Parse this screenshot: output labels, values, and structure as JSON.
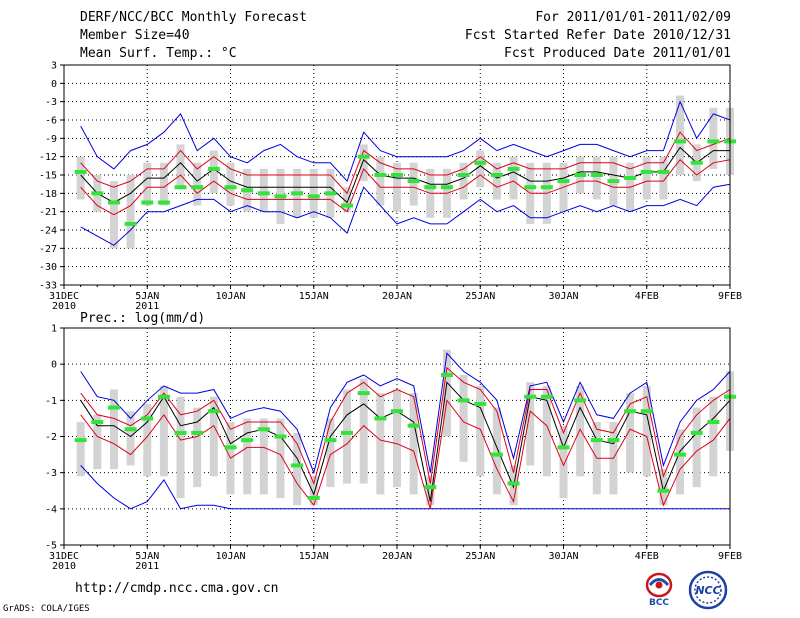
{
  "header": {
    "title": "DERF/NCC/BCC Monthly Forecast",
    "member_size": "Member Size=40",
    "variable": "Mean Surf. Temp.: °C",
    "period": "For 2011/01/01-2011/02/09",
    "fcst_started": "Fcst Started Refer Date 2010/12/31",
    "fcst_produced": "Fcst Produced Date 2011/01/01"
  },
  "footer": {
    "url": "http://cmdp.ncc.cma.gov.cn",
    "credit": "GrADS: COLA/IGES",
    "logo_bcc_label": "BCC",
    "logo_ncc_label": "NCC"
  },
  "colors": {
    "ensemble_bar": "#d3d3d3",
    "mean_line": "#000000",
    "spread_line": "#e0001a",
    "envelope_line": "#0000e0",
    "deterministic": "#33e33a",
    "grid": "#000000"
  },
  "chart_data": [
    {
      "type": "line",
      "title": "Mean Surf. Temp.: °C",
      "ylabel": "°C",
      "ylim": [
        -33,
        3
      ],
      "yticks": [
        3,
        0,
        -3,
        -6,
        -9,
        -12,
        -15,
        -18,
        -21,
        -24,
        -27,
        -30,
        -33
      ],
      "xlim": [
        0,
        40
      ],
      "xticks": [
        0,
        5,
        10,
        15,
        20,
        25,
        30,
        35,
        40
      ],
      "xtick_labels": [
        "31DEC",
        "5JAN",
        "10JAN",
        "15JAN",
        "20JAN",
        "25JAN",
        "30JAN",
        "4FEB",
        "9FEB"
      ],
      "xtick_sublabels": [
        "2010",
        "2011",
        "",
        "",
        "",
        "",
        "",
        "",
        ""
      ],
      "x": [
        1,
        2,
        3,
        4,
        5,
        6,
        7,
        8,
        9,
        10,
        11,
        12,
        13,
        14,
        15,
        16,
        17,
        18,
        19,
        20,
        21,
        22,
        23,
        24,
        25,
        26,
        27,
        28,
        29,
        30,
        31,
        32,
        33,
        34,
        35,
        36,
        37,
        38,
        39,
        40
      ],
      "series": [
        {
          "name": "ensemble max",
          "role": "envelope",
          "values": [
            -7,
            -12,
            -14,
            -11,
            -10,
            -8,
            -5,
            -11,
            -9,
            -12,
            -13,
            -11,
            -10,
            -12,
            -13,
            -13,
            -16,
            -8,
            -11,
            -12,
            -12,
            -12,
            -12,
            -11,
            -9,
            -11,
            -10,
            -11,
            -12,
            -11,
            -10,
            -10,
            -11,
            -12,
            -11,
            -11,
            -3,
            -9,
            -5,
            -6
          ]
        },
        {
          "name": "mean + spread",
          "role": "spread",
          "values": [
            -13,
            -16,
            -17,
            -16,
            -14,
            -14,
            -11,
            -14,
            -12,
            -14,
            -15,
            -15,
            -15,
            -15,
            -15,
            -15,
            -18,
            -11,
            -13,
            -14,
            -14,
            -15,
            -15,
            -14,
            -12,
            -14,
            -13,
            -14,
            -14,
            -14,
            -13,
            -13,
            -13,
            -14,
            -13,
            -13,
            -8,
            -11,
            -10,
            -9
          ]
        },
        {
          "name": "ensemble mean",
          "role": "mean",
          "values": [
            -15,
            -18,
            -19.5,
            -18,
            -15.5,
            -15.5,
            -13,
            -16,
            -14,
            -16,
            -17,
            -17,
            -17,
            -17,
            -17,
            -17,
            -19.5,
            -12.5,
            -15,
            -15.5,
            -15.5,
            -16.5,
            -16.5,
            -15.5,
            -13.5,
            -15.5,
            -14.5,
            -16,
            -16,
            -15.5,
            -14.5,
            -14.5,
            -15,
            -15.5,
            -14.5,
            -14.5,
            -10.5,
            -13,
            -11,
            -11
          ]
        },
        {
          "name": "mean - spread",
          "role": "spread",
          "values": [
            -17,
            -20,
            -21.5,
            -20,
            -17,
            -17,
            -15,
            -18,
            -16,
            -18,
            -19,
            -19,
            -19,
            -19,
            -19,
            -19,
            -21,
            -14,
            -17,
            -17,
            -17,
            -18,
            -18,
            -17,
            -15,
            -17,
            -16,
            -18,
            -18,
            -17,
            -16,
            -16,
            -17,
            -17,
            -16,
            -16,
            -12.5,
            -15,
            -13,
            -12.5
          ]
        },
        {
          "name": "ensemble min",
          "role": "envelope",
          "values": [
            -23.5,
            -25,
            -26.5,
            -24,
            -21,
            -21,
            -20,
            -19,
            -19,
            -21,
            -20,
            -21,
            -21,
            -22,
            -21,
            -22,
            -24.5,
            -17,
            -20,
            -23,
            -22,
            -23,
            -23,
            -21,
            -19,
            -21,
            -20,
            -22,
            -22,
            -21,
            -20,
            -21,
            -20,
            -21,
            -20,
            -20,
            -19,
            -20,
            -17,
            -16.5
          ]
        },
        {
          "name": "member range top",
          "role": "bar_top",
          "values": [
            -12,
            -15,
            -16,
            -15,
            -13,
            -13,
            -10,
            -13,
            -11,
            -13,
            -14,
            -14,
            -14,
            -14,
            -14,
            -14,
            -17,
            -10,
            -12,
            -13,
            -13,
            -14,
            -14,
            -13,
            -11,
            -13,
            -12,
            -13,
            -13,
            -13,
            -12,
            -12,
            -12,
            -13,
            -12,
            -12,
            -2,
            -10,
            -4,
            -4
          ]
        },
        {
          "name": "member range bottom",
          "role": "bar_bottom",
          "values": [
            -19,
            -21,
            -27,
            -27,
            -20,
            -20,
            -17,
            -20,
            -18,
            -20,
            -21,
            -21,
            -23,
            -22,
            -22,
            -22,
            -21,
            -16,
            -20,
            -21,
            -20,
            -22,
            -22,
            -19,
            -17,
            -19,
            -19,
            -23,
            -23,
            -21,
            -18,
            -19,
            -20,
            -21,
            -19,
            -19,
            -15,
            -16,
            -14,
            -15
          ]
        },
        {
          "name": "deterministic",
          "role": "marker",
          "values": [
            -14.5,
            -18,
            -19.5,
            -23,
            -19.5,
            -19.5,
            -17,
            -17,
            -14,
            -17,
            -17.5,
            -18,
            -18.5,
            -18,
            -18.5,
            -18,
            -20,
            -12,
            -15,
            -15,
            -16,
            -17,
            -17,
            -15,
            -13,
            -15,
            -14,
            -17,
            -17,
            -16,
            -15,
            -15,
            -16,
            -15.5,
            -14.5,
            -14.5,
            -9.5,
            -13,
            -9.5,
            -9.5
          ]
        }
      ]
    },
    {
      "type": "line",
      "title": "Prec.: log(mm/d)",
      "ylabel": "log(mm/d)",
      "ylim": [
        -5,
        1
      ],
      "yticks": [
        1,
        0,
        -1,
        -2,
        -3,
        -4,
        -5
      ],
      "xlim": [
        0,
        40
      ],
      "xticks": [
        0,
        5,
        10,
        15,
        20,
        25,
        30,
        35,
        40
      ],
      "xtick_labels": [
        "31DEC",
        "5JAN",
        "10JAN",
        "15JAN",
        "20JAN",
        "25JAN",
        "30JAN",
        "4FEB",
        "9FEB"
      ],
      "xtick_sublabels": [
        "2010",
        "2011",
        "",
        "",
        "",
        "",
        "",
        "",
        ""
      ],
      "x": [
        1,
        2,
        3,
        4,
        5,
        6,
        7,
        8,
        9,
        10,
        11,
        12,
        13,
        14,
        15,
        16,
        17,
        18,
        19,
        20,
        21,
        22,
        23,
        24,
        25,
        26,
        27,
        28,
        29,
        30,
        31,
        32,
        33,
        34,
        35,
        36,
        37,
        38,
        39,
        40
      ],
      "series": [
        {
          "name": "ensemble max",
          "role": "envelope",
          "values": [
            -0.2,
            -0.9,
            -1.0,
            -1.5,
            -1.0,
            -0.6,
            -0.8,
            -0.8,
            -0.7,
            -1.5,
            -1.3,
            -1.2,
            -1.3,
            -1.8,
            -3.0,
            -1.2,
            -0.5,
            -0.3,
            -0.6,
            -0.4,
            -0.6,
            -3.0,
            0.3,
            -0.2,
            -0.5,
            -1.0,
            -2.6,
            -0.6,
            -0.5,
            -1.6,
            -0.5,
            -1.4,
            -1.5,
            -0.8,
            -0.5,
            -2.8,
            -1.6,
            -1.0,
            -0.7,
            -0.2
          ]
        },
        {
          "name": "mean + spread",
          "role": "spread",
          "values": [
            -0.8,
            -1.4,
            -1.5,
            -1.7,
            -1.4,
            -0.8,
            -1.4,
            -1.3,
            -1.0,
            -1.8,
            -1.6,
            -1.6,
            -1.6,
            -2.2,
            -3.3,
            -1.6,
            -0.8,
            -0.5,
            -0.9,
            -0.7,
            -0.9,
            -3.3,
            -0.1,
            -0.5,
            -0.7,
            -1.3,
            -3.0,
            -0.7,
            -0.7,
            -1.9,
            -0.8,
            -1.8,
            -1.9,
            -1.1,
            -0.9,
            -3.1,
            -2.0,
            -1.4,
            -1.0,
            -0.7
          ]
        },
        {
          "name": "ensemble mean",
          "role": "mean",
          "values": [
            -1.0,
            -1.7,
            -1.7,
            -2.0,
            -1.6,
            -0.9,
            -1.7,
            -1.6,
            -1.2,
            -2.2,
            -1.9,
            -1.8,
            -2.0,
            -2.6,
            -3.6,
            -2.0,
            -1.4,
            -1.1,
            -1.5,
            -1.3,
            -1.6,
            -3.8,
            -0.5,
            -1.0,
            -1.2,
            -2.3,
            -3.4,
            -0.9,
            -1.0,
            -2.3,
            -1.2,
            -2.1,
            -2.2,
            -1.3,
            -1.4,
            -3.5,
            -2.4,
            -1.9,
            -1.5,
            -1.0
          ]
        },
        {
          "name": "mean - spread",
          "role": "spread",
          "values": [
            -1.4,
            -2.0,
            -2.2,
            -2.5,
            -2.0,
            -1.4,
            -2.1,
            -2.0,
            -1.7,
            -2.6,
            -2.3,
            -2.3,
            -2.5,
            -3.3,
            -3.9,
            -2.5,
            -2.2,
            -1.7,
            -2.1,
            -2.2,
            -2.4,
            -4.0,
            -1.0,
            -1.6,
            -1.8,
            -2.9,
            -3.8,
            -1.3,
            -1.7,
            -2.8,
            -1.8,
            -2.6,
            -2.6,
            -1.8,
            -2.0,
            -3.9,
            -2.9,
            -2.4,
            -2.1,
            -1.5
          ]
        },
        {
          "name": "ensemble min",
          "role": "envelope",
          "values": [
            -2.8,
            -3.3,
            -3.7,
            -4.0,
            -3.8,
            -3.2,
            -4.0,
            -3.9,
            -3.9,
            -4.0,
            -4.0,
            -4.0,
            -4.0,
            -4.0,
            -4.0,
            -4.0,
            -4.0,
            -4.0,
            -4.0,
            -4.0,
            -4.0,
            -4.0,
            -4.0,
            -4.0,
            -4.0,
            -4.0,
            -4.0,
            -4.0,
            -4.0,
            -4.0,
            -4.0,
            -4.0,
            -4.0,
            -4.0,
            -4.0,
            -4.0,
            -4.0,
            -4.0,
            -4.0,
            -4.0
          ]
        },
        {
          "name": "member range top",
          "role": "bar_top",
          "values": [
            -1.6,
            -1.4,
            -0.7,
            -1.3,
            -1.1,
            -0.6,
            -0.9,
            -1.2,
            -0.9,
            -1.6,
            -1.5,
            -1.5,
            -1.5,
            -1.9,
            -3.1,
            -1.5,
            -0.7,
            -0.4,
            -0.8,
            -0.7,
            -0.8,
            -3.1,
            0.4,
            -0.3,
            -0.6,
            -1.2,
            -2.8,
            -0.5,
            -0.6,
            -1.7,
            -0.6,
            -1.6,
            -1.6,
            -0.8,
            -0.6,
            -2.9,
            -1.8,
            -1.2,
            -0.9,
            -0.2
          ]
        },
        {
          "name": "member range bottom",
          "role": "bar_bottom",
          "values": [
            -3.1,
            -2.9,
            -2.9,
            -2.8,
            -3.1,
            -3.1,
            -3.7,
            -3.4,
            -3.1,
            -3.6,
            -3.6,
            -3.6,
            -3.7,
            -3.9,
            -3.9,
            -3.4,
            -3.3,
            -3.3,
            -3.6,
            -3.4,
            -3.6,
            -3.9,
            -2.0,
            -2.7,
            -3.1,
            -3.6,
            -3.9,
            -2.8,
            -3.1,
            -3.7,
            -3.1,
            -3.6,
            -3.6,
            -3.0,
            -3.1,
            -3.9,
            -3.6,
            -3.4,
            -3.1,
            -2.4
          ]
        },
        {
          "name": "deterministic",
          "role": "marker",
          "values": [
            -2.1,
            -1.6,
            -1.2,
            -1.8,
            -1.5,
            -0.9,
            -1.9,
            -1.9,
            -1.3,
            -2.3,
            -2.1,
            -1.8,
            -2.0,
            -2.8,
            -3.7,
            -2.1,
            -1.9,
            -0.8,
            -1.5,
            -1.3,
            -1.7,
            -3.4,
            -0.3,
            -1.0,
            -1.1,
            -2.5,
            -3.3,
            -0.9,
            -0.9,
            -2.3,
            -1.0,
            -2.1,
            -2.1,
            -1.3,
            -1.3,
            -3.5,
            -2.5,
            -1.9,
            -1.6,
            -0.9
          ]
        }
      ]
    }
  ]
}
